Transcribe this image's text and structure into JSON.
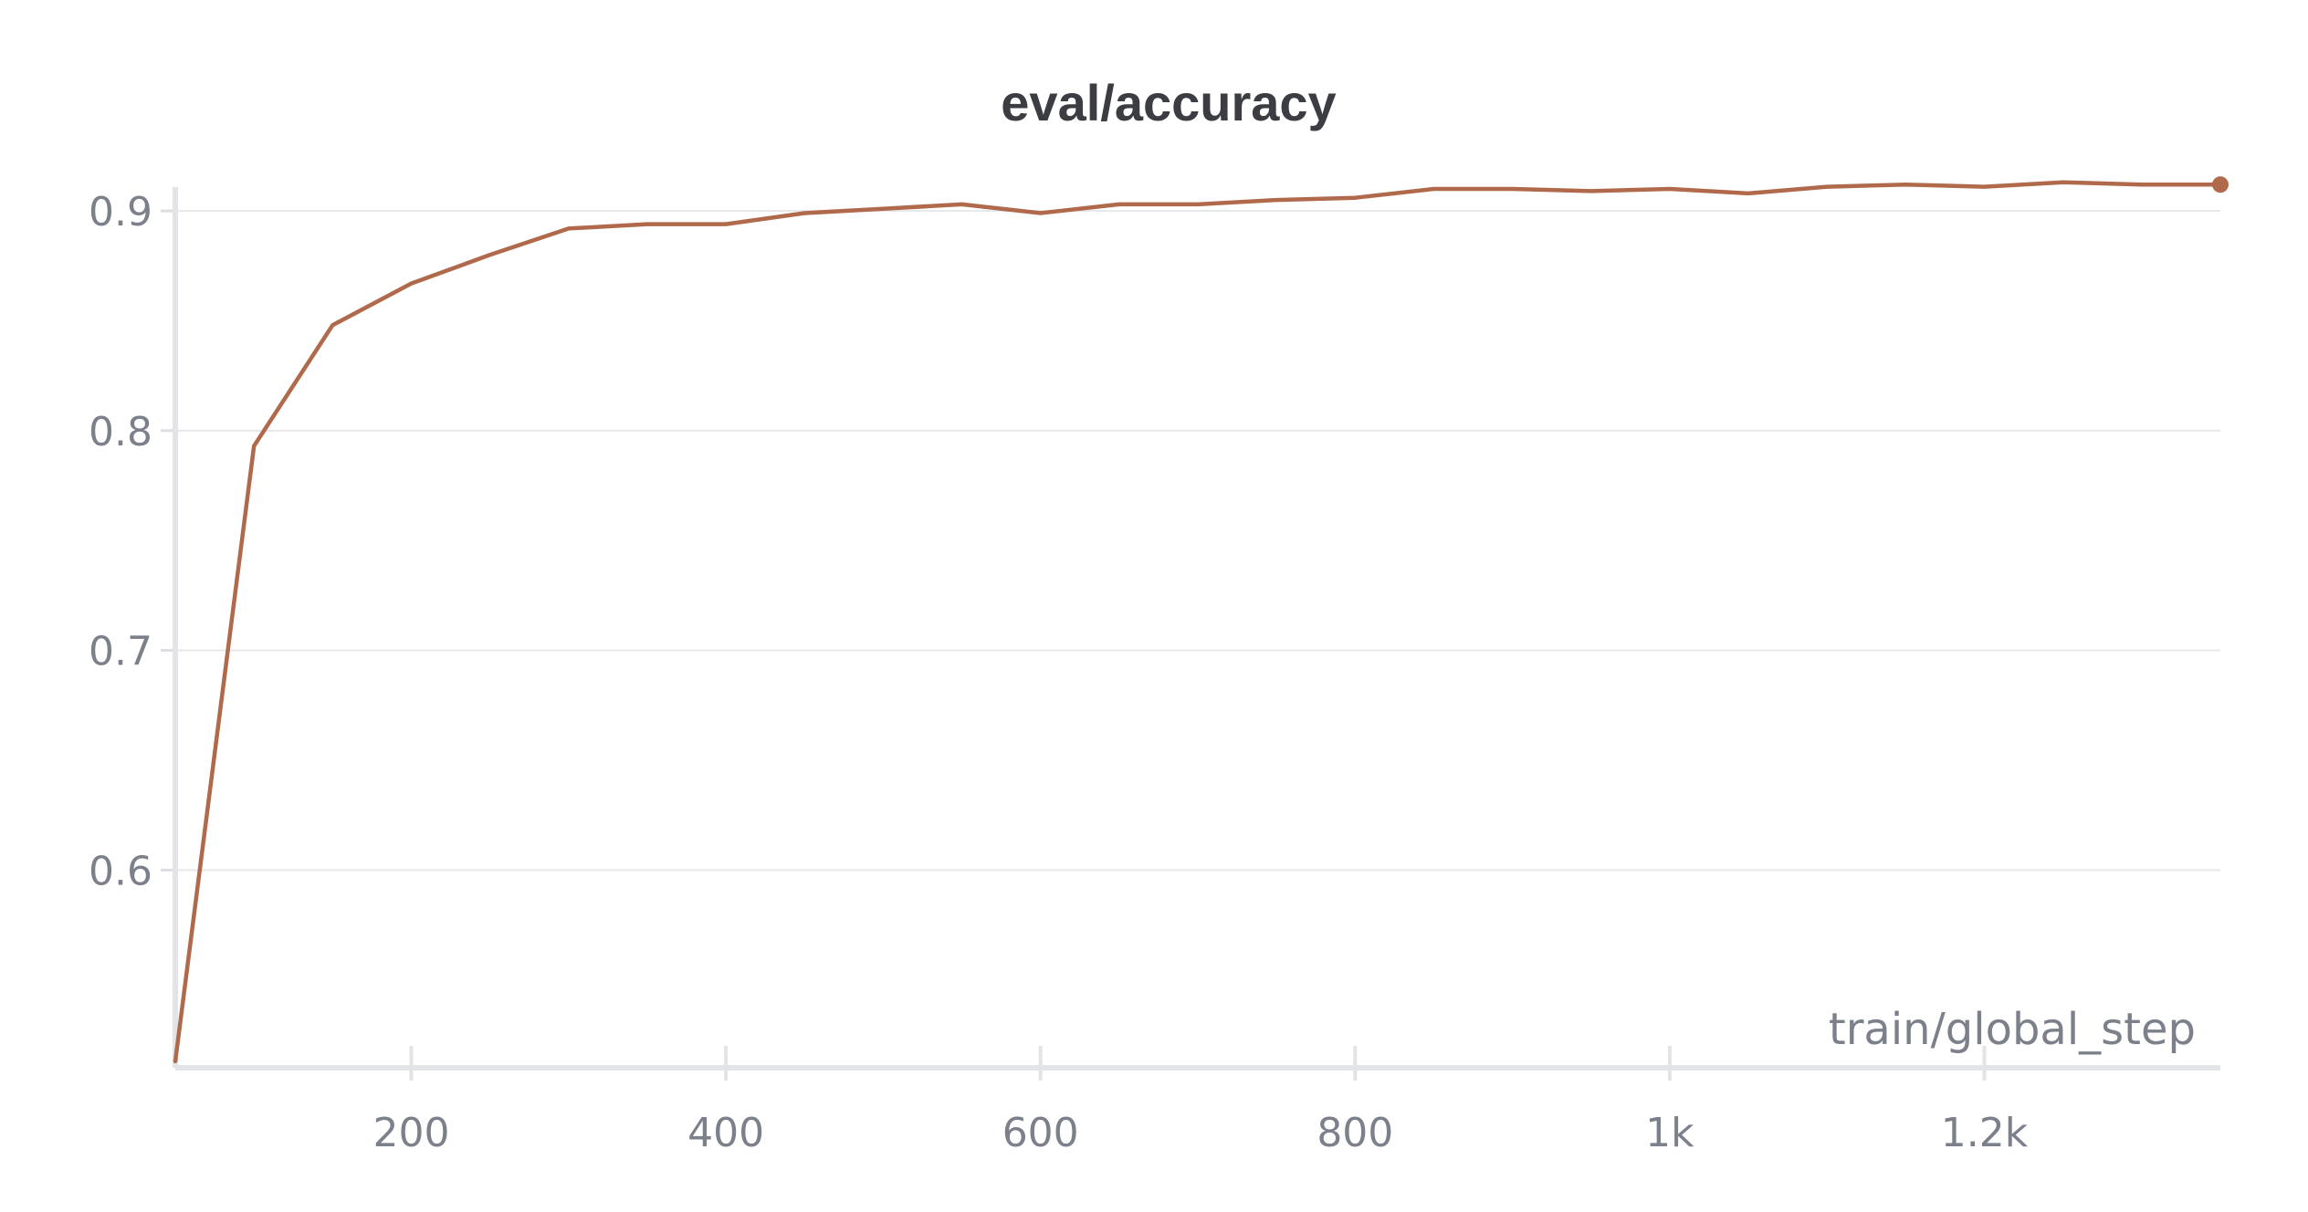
{
  "chart_data": {
    "type": "line",
    "title": "eval/accuracy",
    "xlabel": "train/global_step",
    "ylabel": "",
    "xlim": [
      50,
      1350
    ],
    "ylim": [
      0.51,
      0.915
    ],
    "xticks": [
      200,
      400,
      600,
      800,
      1000,
      1200
    ],
    "xtick_labels": [
      "200",
      "400",
      "600",
      "800",
      "1k",
      "1.2k"
    ],
    "yticks": [
      0.6,
      0.7,
      0.8,
      0.9
    ],
    "ytick_labels": [
      "0.6",
      "0.7",
      "0.8",
      "0.9"
    ],
    "grid": true,
    "legend": "none",
    "series": [
      {
        "color": "#b06a4b",
        "x": [
          50,
          100,
          150,
          200,
          250,
          300,
          350,
          400,
          450,
          500,
          550,
          600,
          650,
          700,
          750,
          800,
          850,
          900,
          950,
          1000,
          1050,
          1100,
          1150,
          1200,
          1250,
          1300,
          1350
        ],
        "y": [
          0.513,
          0.793,
          0.848,
          0.867,
          0.88,
          0.892,
          0.894,
          0.894,
          0.899,
          0.901,
          0.903,
          0.899,
          0.903,
          0.903,
          0.905,
          0.906,
          0.91,
          0.91,
          0.909,
          0.91,
          0.908,
          0.911,
          0.912,
          0.911,
          0.913,
          0.912,
          0.912
        ]
      }
    ]
  }
}
